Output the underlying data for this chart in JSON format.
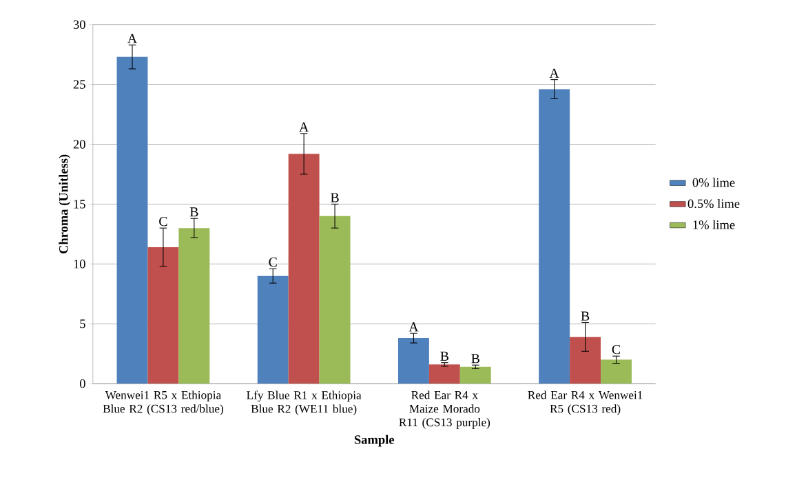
{
  "chart_data": {
    "type": "bar",
    "xlabel": "Sample",
    "ylabel": "Chroma (Unitless)",
    "categories": [
      "Wenwei1 R5 x Ethiopia Blue R2 (CS13 red/blue)",
      "Lfy Blue R1 x Ethiopia Blue R2 (WE11 blue)",
      "Red Ear R4 x Maize Morado R11 (CS13 purple)",
      "Red Ear R4 x Wenwei1 R5 (CS13 red)"
    ],
    "ylim": [
      0,
      30
    ],
    "yticks": [
      0,
      5,
      10,
      15,
      20,
      25,
      30
    ],
    "grid": "y",
    "legend": "right",
    "series": [
      {
        "name": "0% lime",
        "color": "#4f81bd",
        "values": [
          27.3,
          9.0,
          3.8,
          24.6
        ],
        "errors": [
          1.0,
          0.6,
          0.4,
          0.8
        ],
        "value_labels": [
          "A",
          "C",
          "A",
          "A"
        ]
      },
      {
        "name": "0.5% lime",
        "color": "#c0504d",
        "values": [
          11.4,
          19.2,
          1.6,
          3.9
        ],
        "errors": [
          1.6,
          1.7,
          0.15,
          1.2
        ],
        "value_labels": [
          "C",
          "A",
          "B",
          "B"
        ]
      },
      {
        "name": "1% lime",
        "color": "#9bbb59",
        "values": [
          13.0,
          14.0,
          1.4,
          2.0
        ],
        "errors": [
          0.8,
          1.0,
          0.15,
          0.3
        ],
        "value_labels": [
          "B",
          "B",
          "B",
          "C"
        ]
      }
    ]
  }
}
